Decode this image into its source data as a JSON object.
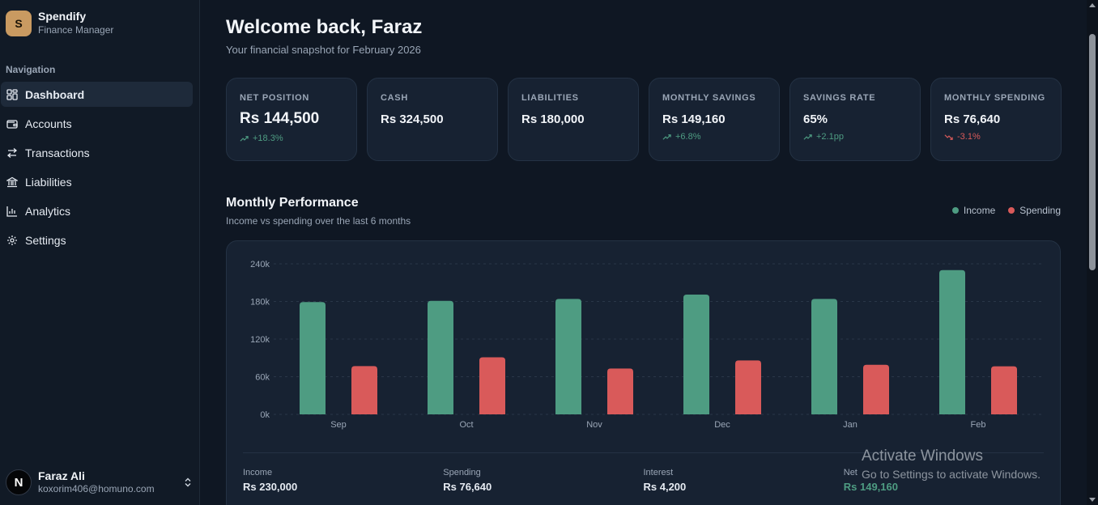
{
  "brand": {
    "initial": "S",
    "name": "Spendify",
    "subtitle": "Finance Manager"
  },
  "sidebar": {
    "heading": "Navigation",
    "items": [
      {
        "label": "Dashboard",
        "icon": "dashboard-icon",
        "active": true
      },
      {
        "label": "Accounts",
        "icon": "wallet-icon",
        "active": false
      },
      {
        "label": "Transactions",
        "icon": "arrows-swap-icon",
        "active": false
      },
      {
        "label": "Liabilities",
        "icon": "bank-icon",
        "active": false
      },
      {
        "label": "Analytics",
        "icon": "bar-chart-icon",
        "active": false
      },
      {
        "label": "Settings",
        "icon": "gear-icon",
        "active": false
      }
    ]
  },
  "user": {
    "initial": "N",
    "name": "Faraz Ali",
    "email": "koxorim406@homuno.com"
  },
  "header": {
    "title": "Welcome back, Faraz",
    "subtitle": "Your financial snapshot for February 2026"
  },
  "stats": [
    {
      "label": "NET POSITION",
      "value": "Rs 144,500",
      "delta": "+18.3%",
      "trend": "up"
    },
    {
      "label": "CASH",
      "value": "Rs 324,500",
      "delta": "",
      "trend": ""
    },
    {
      "label": "LIABILITIES",
      "value": "Rs 180,000",
      "delta": "",
      "trend": ""
    },
    {
      "label": "MONTHLY SAVINGS",
      "value": "Rs 149,160",
      "delta": "+6.8%",
      "trend": "up"
    },
    {
      "label": "SAVINGS RATE",
      "value": "65%",
      "delta": "+2.1pp",
      "trend": "up"
    },
    {
      "label": "MONTHLY SPENDING",
      "value": "Rs 76,640",
      "delta": "-3.1%",
      "trend": "down"
    }
  ],
  "performance": {
    "title": "Monthly Performance",
    "subtitle": "Income vs spending over the last 6 months",
    "summary": [
      {
        "label": "Income",
        "value": "Rs 230,000"
      },
      {
        "label": "Spending",
        "value": "Rs 76,640"
      },
      {
        "label": "Interest",
        "value": "Rs 4,200"
      },
      {
        "label": "Net",
        "value": "Rs 149,160"
      }
    ]
  },
  "colors": {
    "income": "#4e9c82",
    "spending": "#d95a5a",
    "accent": "#c99a61"
  },
  "chart_data": {
    "type": "bar",
    "categories": [
      "Sep",
      "Oct",
      "Nov",
      "Dec",
      "Jan",
      "Feb"
    ],
    "series": [
      {
        "name": "Income",
        "values": [
          179000,
          181000,
          184000,
          191000,
          184000,
          230000
        ]
      },
      {
        "name": "Spending",
        "values": [
          77000,
          91000,
          73000,
          86000,
          79000,
          76640
        ]
      }
    ],
    "yticks": [
      "0k",
      "60k",
      "120k",
      "180k",
      "240k"
    ],
    "ylim": [
      0,
      240000
    ],
    "grid": true,
    "legend": "top-right"
  },
  "watermark": {
    "title": "Activate Windows",
    "subtitle": "Go to Settings to activate Windows."
  }
}
